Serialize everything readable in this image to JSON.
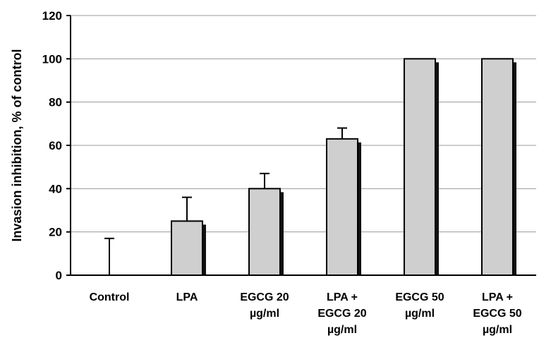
{
  "chart_data": {
    "type": "bar",
    "title": "",
    "xlabel": "",
    "ylabel": "Invasion inhibition, % of control",
    "ylim": [
      0,
      120
    ],
    "yticks": [
      0,
      20,
      40,
      60,
      80,
      100,
      120
    ],
    "grid": true,
    "legend": "none",
    "categories": [
      [
        "Control"
      ],
      [
        "LPA"
      ],
      [
        "EGCG 20",
        "µg/ml"
      ],
      [
        "LPA +",
        "EGCG 20",
        "µg/ml"
      ],
      [
        "EGCG 50",
        "µg/ml"
      ],
      [
        "LPA +",
        "EGCG 50",
        "µg/ml"
      ]
    ],
    "values": [
      0,
      25,
      40,
      63,
      100,
      100
    ],
    "error_plus": [
      17,
      11,
      7,
      5,
      0,
      0
    ],
    "colors": {
      "bar_fill": "#cfcfcf",
      "bar_shadow": "#111111",
      "grid": "#9a9a9a",
      "axis": "#000000"
    }
  }
}
